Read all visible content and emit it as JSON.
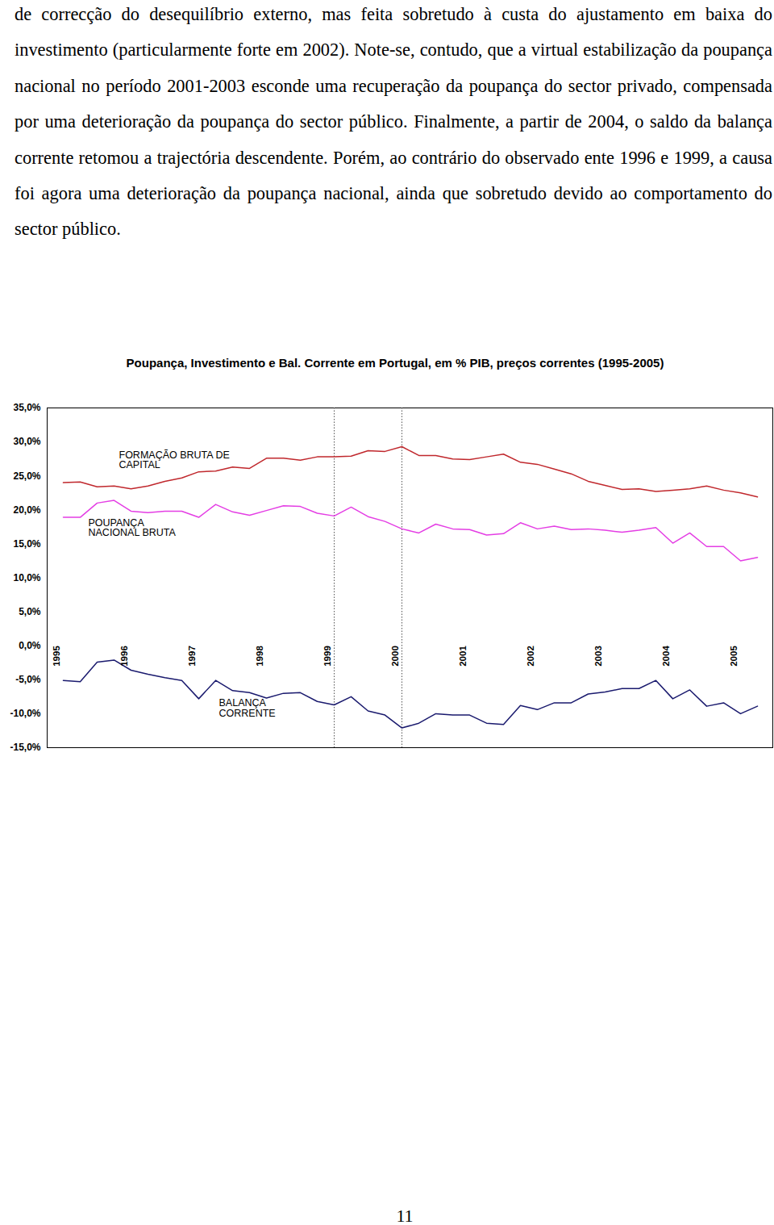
{
  "paragraph": "de correcção do desequilíbrio externo, mas feita sobretudo à custa do ajustamento em baixa do investimento (particularmente forte em 2002). Note-se, contudo, que a virtual estabilização da poupança nacional no período 2001-2003 esconde uma recuperação da poupança do sector privado, compensada por uma deterioração da poupança do sector público. Finalmente, a partir de 2004, o saldo da balança corrente retomou a trajectória descendente. Porém, ao contrário do observado ente 1996 e 1999, a causa foi agora uma deterioração da poupança nacional, ainda que sobretudo devido ao comportamento do sector público.",
  "page_number": "11",
  "chart_data": {
    "type": "line",
    "title": "Poupança, Investimento e Bal. Corrente em Portugal, em % PIB, preços correntes (1995-2005)",
    "categories": [
      "1995",
      null,
      null,
      null,
      "1996",
      null,
      null,
      null,
      "1997",
      null,
      null,
      null,
      "1998",
      null,
      null,
      null,
      "1999",
      null,
      null,
      null,
      "2000",
      null,
      null,
      null,
      "2001",
      null,
      null,
      null,
      "2002",
      null,
      null,
      null,
      "2003",
      null,
      null,
      null,
      "2004",
      null,
      null,
      null,
      "2005",
      null
    ],
    "series": [
      {
        "name": "FORMAÇÃO BRUTA DE CAPITAL",
        "color": "#c0282d",
        "values": [
          24.0,
          24.1,
          23.4,
          23.5,
          23.1,
          23.5,
          24.2,
          24.7,
          25.6,
          25.7,
          26.3,
          26.1,
          27.6,
          27.6,
          27.3,
          27.8,
          27.8,
          27.9,
          28.7,
          28.6,
          29.3,
          28.0,
          28.0,
          27.5,
          27.4,
          27.8,
          28.2,
          27.0,
          26.7,
          26.0,
          25.3,
          24.2,
          23.6,
          23.0,
          23.1,
          22.7,
          22.9,
          23.1,
          23.5,
          22.9,
          22.5,
          21.9
        ]
      },
      {
        "name": "POUPANÇA NACIONAL BRUTA",
        "color": "#e43ee4",
        "values": [
          18.9,
          18.9,
          21.0,
          21.4,
          19.8,
          19.6,
          19.8,
          19.8,
          18.9,
          20.8,
          19.7,
          19.2,
          19.9,
          20.6,
          20.5,
          19.5,
          19.1,
          20.4,
          19.0,
          18.3,
          17.2,
          16.6,
          17.9,
          17.2,
          17.1,
          16.3,
          16.5,
          18.1,
          17.2,
          17.6,
          17.1,
          17.2,
          17.0,
          16.7,
          17.0,
          17.4,
          15.1,
          16.6,
          14.6,
          14.6,
          12.5,
          13.0
        ]
      },
      {
        "name": "BALANÇA CORRENTE",
        "color": "#1a1a6e",
        "values": [
          -5.1,
          -5.3,
          -2.4,
          -2.1,
          -3.6,
          -4.2,
          -4.7,
          -5.1,
          -7.8,
          -5.1,
          -6.6,
          -6.9,
          -7.7,
          -7.0,
          -6.9,
          -8.2,
          -8.7,
          -7.5,
          -9.6,
          -10.2,
          -12.1,
          -11.4,
          -10.0,
          -10.2,
          -10.2,
          -11.4,
          -11.6,
          -8.8,
          -9.4,
          -8.4,
          -8.4,
          -7.1,
          -6.8,
          -6.3,
          -6.3,
          -5.1,
          -7.8,
          -6.5,
          -8.9,
          -8.4,
          -10.0,
          -8.9
        ]
      }
    ],
    "ylim": [
      -15,
      35
    ],
    "yticks": [
      {
        "value": -15,
        "label": "-15,0%"
      },
      {
        "value": -10,
        "label": "-10,0%"
      },
      {
        "value": -5,
        "label": "-5,0%"
      },
      {
        "value": 0,
        "label": "0,0%"
      },
      {
        "value": 5,
        "label": "5,0%"
      },
      {
        "value": 10,
        "label": "10,0%"
      },
      {
        "value": 15,
        "label": "15,0%"
      },
      {
        "value": 20,
        "label": "20,0%"
      },
      {
        "value": 25,
        "label": "25,0%"
      },
      {
        "value": 30,
        "label": "30,0%"
      },
      {
        "value": 35,
        "label": "35,0%"
      }
    ],
    "reference_lines": [
      "1999",
      "2000"
    ],
    "grid": false
  }
}
